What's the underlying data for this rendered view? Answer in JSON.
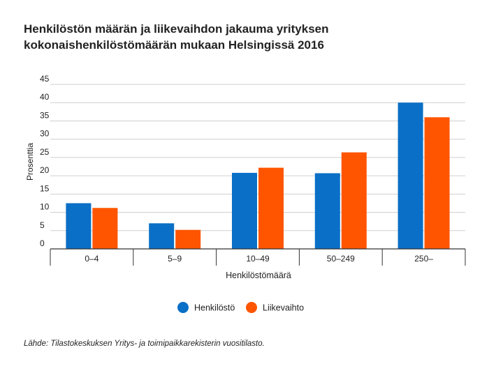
{
  "chart_data": {
    "type": "bar",
    "title_lines": [
      "Henkilöstön määrän ja liikevaihdon jakauma yrityksen",
      "kokonaishenkilöstömäärän mukaan Helsingissä 2016"
    ],
    "xlabel": "Henkilöstömäärä",
    "ylabel": "Prosenttia",
    "categories": [
      "0–4",
      "5–9",
      "10–49",
      "50–249",
      "250–"
    ],
    "series": [
      {
        "name": "Henkilöstö",
        "color": "#0a6fc6",
        "values": [
          12.5,
          7,
          20.8,
          20.7,
          40
        ]
      },
      {
        "name": "Liikevaihto",
        "color": "#ff5500",
        "values": [
          11.2,
          5.2,
          22.2,
          26.4,
          36
        ]
      }
    ],
    "ylim": [
      0,
      45
    ],
    "yticks": [
      0,
      5,
      10,
      15,
      20,
      25,
      30,
      35,
      40,
      45
    ],
    "grid": true,
    "legend_position": "bottom-center"
  },
  "source": "Lähde: Tilastokeskuksen Yritys- ja toimipaikkarekisterin vuositilasto."
}
